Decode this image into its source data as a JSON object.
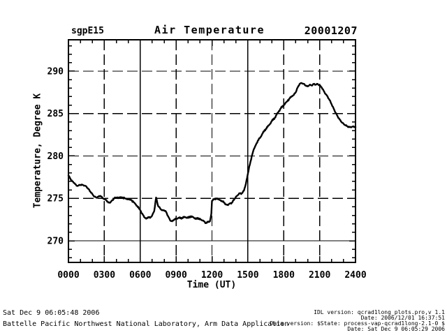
{
  "header": {
    "facility_label": "sgpE15",
    "title": "Air Temperature",
    "date_label": "20001207"
  },
  "chart_data": {
    "type": "line",
    "title": "Air Temperature",
    "xlabel": "Time (UT)",
    "ylabel": "Temperature, Degree K",
    "xlim": [
      0,
      24
    ],
    "ylim": [
      267.45,
      293.7
    ],
    "grid": "on",
    "legend": "none",
    "x_ticks": {
      "positions": [
        0,
        3,
        6,
        9,
        12,
        15,
        18,
        21,
        24
      ],
      "labels": [
        "0000",
        "0300",
        "0600",
        "0900",
        "1200",
        "1500",
        "1800",
        "2100",
        "2400"
      ],
      "minor_step": 1
    },
    "y_ticks": {
      "positions": [
        270,
        275,
        280,
        285,
        290
      ],
      "labels": [
        "270",
        "275",
        "280",
        "285",
        "290"
      ],
      "minor_step": 1
    },
    "gridlines": {
      "x_dashed": [
        3,
        9,
        12,
        18,
        21
      ],
      "x_solid": [
        6,
        15
      ],
      "y_dashed": [
        275,
        280,
        285,
        290
      ],
      "y_solid": [
        270
      ]
    },
    "line_color": "#000000",
    "series": [
      {
        "name": "air temperature",
        "points": [
          [
            0.0,
            277.7
          ],
          [
            0.17,
            277.3
          ],
          [
            0.33,
            277.0
          ],
          [
            0.5,
            276.8
          ],
          [
            0.67,
            276.5
          ],
          [
            0.83,
            276.5
          ],
          [
            1.0,
            276.6
          ],
          [
            1.17,
            276.6
          ],
          [
            1.33,
            276.5
          ],
          [
            1.5,
            276.4
          ],
          [
            1.67,
            276.1
          ],
          [
            1.83,
            275.8
          ],
          [
            2.0,
            275.5
          ],
          [
            2.17,
            275.2
          ],
          [
            2.33,
            275.1
          ],
          [
            2.5,
            275.2
          ],
          [
            2.67,
            275.3
          ],
          [
            2.83,
            275.1
          ],
          [
            3.0,
            274.9
          ],
          [
            3.17,
            274.8
          ],
          [
            3.33,
            274.5
          ],
          [
            3.5,
            274.5
          ],
          [
            3.67,
            274.8
          ],
          [
            3.83,
            275.0
          ],
          [
            4.0,
            275.1
          ],
          [
            4.25,
            275.1
          ],
          [
            4.5,
            275.1
          ],
          [
            4.75,
            275.0
          ],
          [
            5.0,
            274.9
          ],
          [
            5.25,
            274.8
          ],
          [
            5.5,
            274.5
          ],
          [
            5.75,
            274.1
          ],
          [
            6.0,
            273.6
          ],
          [
            6.17,
            273.2
          ],
          [
            6.33,
            272.8
          ],
          [
            6.5,
            272.6
          ],
          [
            6.67,
            272.8
          ],
          [
            6.83,
            272.7
          ],
          [
            7.0,
            273.0
          ],
          [
            7.17,
            273.5
          ],
          [
            7.33,
            275.1
          ],
          [
            7.5,
            274.1
          ],
          [
            7.67,
            273.8
          ],
          [
            7.83,
            273.6
          ],
          [
            8.0,
            273.6
          ],
          [
            8.17,
            273.4
          ],
          [
            8.33,
            272.9
          ],
          [
            8.5,
            272.4
          ],
          [
            8.67,
            272.3
          ],
          [
            8.83,
            272.5
          ],
          [
            9.0,
            272.6
          ],
          [
            9.25,
            272.7
          ],
          [
            9.5,
            272.7
          ],
          [
            9.75,
            272.8
          ],
          [
            10.0,
            272.7
          ],
          [
            10.25,
            272.9
          ],
          [
            10.5,
            272.7
          ],
          [
            10.75,
            272.6
          ],
          [
            11.0,
            272.6
          ],
          [
            11.17,
            272.4
          ],
          [
            11.33,
            272.3
          ],
          [
            11.5,
            272.1
          ],
          [
            11.67,
            272.2
          ],
          [
            11.83,
            272.3
          ],
          [
            11.95,
            273.2
          ],
          [
            12.0,
            274.7
          ],
          [
            12.17,
            274.9
          ],
          [
            12.33,
            275.0
          ],
          [
            12.5,
            274.9
          ],
          [
            12.67,
            274.8
          ],
          [
            12.83,
            274.7
          ],
          [
            13.0,
            274.5
          ],
          [
            13.17,
            274.3
          ],
          [
            13.33,
            274.2
          ],
          [
            13.5,
            274.4
          ],
          [
            13.67,
            274.5
          ],
          [
            13.83,
            274.8
          ],
          [
            14.0,
            275.2
          ],
          [
            14.17,
            275.4
          ],
          [
            14.33,
            275.6
          ],
          [
            14.5,
            275.6
          ],
          [
            14.67,
            275.9
          ],
          [
            14.83,
            276.7
          ],
          [
            15.0,
            277.9
          ],
          [
            15.17,
            279.0
          ],
          [
            15.33,
            280.0
          ],
          [
            15.5,
            280.8
          ],
          [
            15.67,
            281.3
          ],
          [
            15.83,
            281.8
          ],
          [
            16.0,
            282.1
          ],
          [
            16.25,
            282.7
          ],
          [
            16.5,
            283.2
          ],
          [
            16.75,
            283.6
          ],
          [
            17.0,
            284.1
          ],
          [
            17.25,
            284.5
          ],
          [
            17.5,
            285.1
          ],
          [
            17.75,
            285.6
          ],
          [
            18.0,
            286.0
          ],
          [
            18.25,
            286.4
          ],
          [
            18.5,
            286.8
          ],
          [
            18.75,
            287.1
          ],
          [
            19.0,
            287.5
          ],
          [
            19.17,
            288.1
          ],
          [
            19.33,
            288.5
          ],
          [
            19.5,
            288.6
          ],
          [
            19.67,
            288.5
          ],
          [
            19.83,
            288.3
          ],
          [
            20.0,
            288.2
          ],
          [
            20.17,
            288.4
          ],
          [
            20.33,
            288.3
          ],
          [
            20.5,
            288.5
          ],
          [
            20.67,
            288.4
          ],
          [
            20.83,
            288.5
          ],
          [
            21.0,
            288.3
          ],
          [
            21.17,
            288.1
          ],
          [
            21.33,
            287.7
          ],
          [
            21.5,
            287.3
          ],
          [
            21.67,
            287.0
          ],
          [
            21.83,
            286.6
          ],
          [
            22.0,
            286.1
          ],
          [
            22.17,
            285.6
          ],
          [
            22.33,
            285.1
          ],
          [
            22.5,
            284.7
          ],
          [
            22.67,
            284.3
          ],
          [
            22.83,
            284.0
          ],
          [
            23.0,
            283.8
          ],
          [
            23.17,
            283.6
          ],
          [
            23.33,
            283.5
          ],
          [
            23.5,
            283.4
          ],
          [
            23.67,
            283.4
          ],
          [
            23.83,
            283.5
          ],
          [
            24.0,
            283.4
          ]
        ]
      }
    ]
  },
  "footer": {
    "left_line1": "Sat Dec  9 06:05:48 2006",
    "left_line2": "Battelle Pacific Northwest National Laboratory, Arm Data Application",
    "right_line1": "IDL version: qcrad1long_plots.pro,v 1.1",
    "right_line2": "Date: 2006/12/01 16:37:51",
    "right_line3": "Data version: $State: process-vap-qcrad1long-2.1-0 $",
    "right_line4": "Date: Sat Dec  9 06:05:29 2006"
  }
}
